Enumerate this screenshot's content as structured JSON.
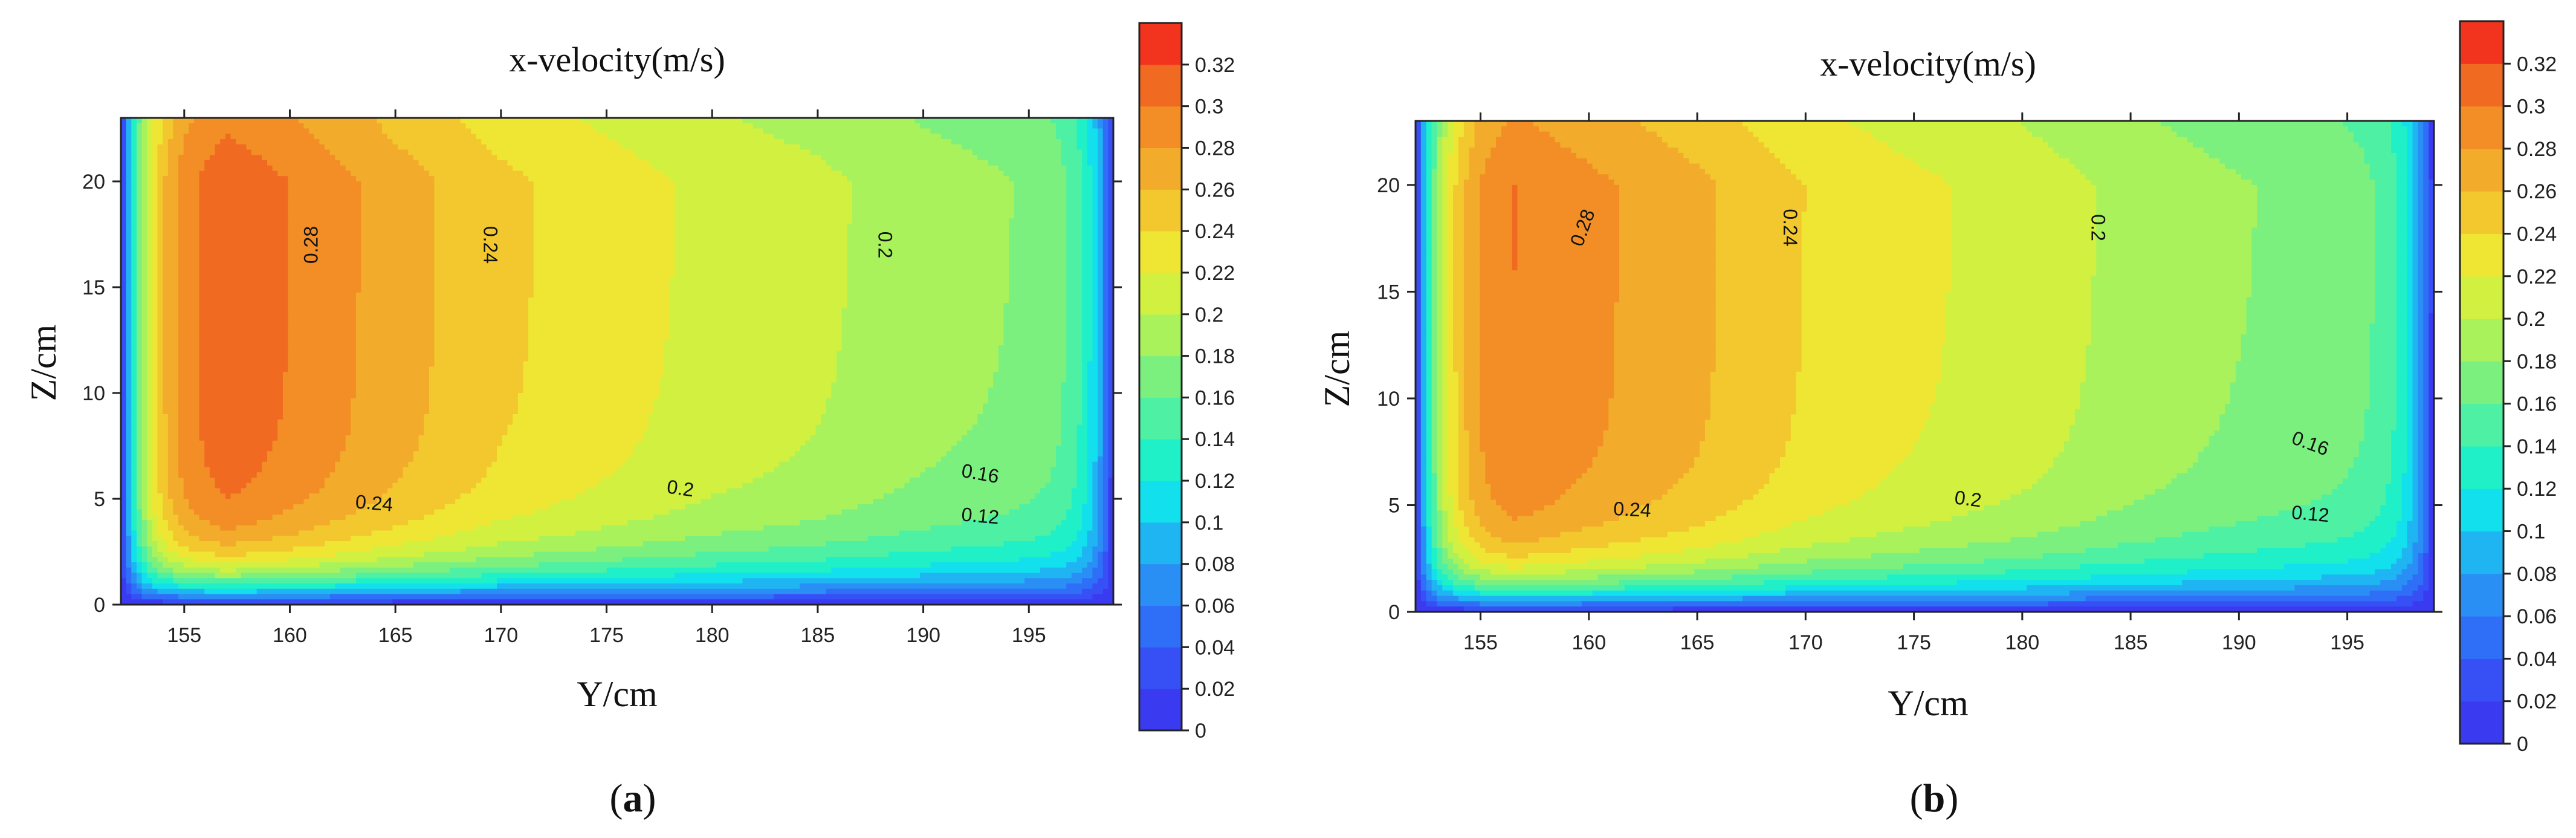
{
  "panel_labels": [
    "(a)",
    "(b)"
  ],
  "chart_data": [
    {
      "type": "contour",
      "panel": "(a)",
      "title": "x-velocity(m/s)",
      "xlabel": "Y/cm",
      "ylabel": "Z/cm",
      "x_ticks": [
        "155",
        "160",
        "165",
        "170",
        "175",
        "180",
        "185",
        "190",
        "195"
      ],
      "x_tick_values": [
        155,
        160,
        165,
        170,
        175,
        180,
        185,
        190,
        195
      ],
      "y_ticks": [
        "0",
        "5",
        "10",
        "15",
        "20"
      ],
      "y_tick_values": [
        0,
        5,
        10,
        15,
        20
      ],
      "xlim": [
        152,
        199
      ],
      "ylim": [
        0,
        23
      ],
      "colorbar_ticks": [
        "0",
        "0.02",
        "0.04",
        "0.06",
        "0.08",
        "0.1",
        "0.12",
        "0.14",
        "0.16",
        "0.18",
        "0.2",
        "0.22",
        "0.24",
        "0.26",
        "0.28",
        "0.3",
        "0.32"
      ],
      "colorbar_values": [
        0,
        0.02,
        0.04,
        0.06,
        0.08,
        0.1,
        0.12,
        0.14,
        0.16,
        0.18,
        0.2,
        0.22,
        0.24,
        0.26,
        0.28,
        0.3,
        0.32
      ],
      "colorbar_max": 0.34,
      "colormap": [
        "#3a3af0",
        "#3750f5",
        "#2f6ff8",
        "#2a8ff5",
        "#1fb4f2",
        "#12e0ec",
        "#1ff0c8",
        "#4ef0a4",
        "#7bf07f",
        "#a9f25b",
        "#d2f040",
        "#efe634",
        "#f2c82e",
        "#f2ab2a",
        "#f28e25",
        "#f06a22",
        "#f2341f"
      ],
      "contour_line_labels": [
        {
          "text": "0.28",
          "x": 161,
          "y": 17,
          "rot": -90
        },
        {
          "text": "0.24",
          "x": 169.5,
          "y": 17,
          "rot": 90
        },
        {
          "text": "0.2",
          "x": 188.2,
          "y": 17,
          "rot": 90
        },
        {
          "text": "0.24",
          "x": 164,
          "y": 4.8,
          "rot": 5
        },
        {
          "text": "0.2",
          "x": 178.5,
          "y": 5.5,
          "rot": 8
        },
        {
          "text": "0.16",
          "x": 192.7,
          "y": 6.2,
          "rot": 10
        },
        {
          "text": "0.12",
          "x": 192.7,
          "y": 4.2,
          "rot": 5
        }
      ]
    },
    {
      "type": "contour",
      "panel": "(b)",
      "title": "x-velocity(m/s)",
      "xlabel": "Y/cm",
      "ylabel": "Z/cm",
      "x_ticks": [
        "155",
        "160",
        "165",
        "170",
        "175",
        "180",
        "185",
        "190",
        "195"
      ],
      "x_tick_values": [
        155,
        160,
        165,
        170,
        175,
        180,
        185,
        190,
        195
      ],
      "y_ticks": [
        "0",
        "5",
        "10",
        "15",
        "20"
      ],
      "y_tick_values": [
        0,
        5,
        10,
        15,
        20
      ],
      "xlim": [
        152,
        199
      ],
      "ylim": [
        0,
        23
      ],
      "colorbar_ticks": [
        "0",
        "0.02",
        "0.04",
        "0.06",
        "0.08",
        "0.1",
        "0.12",
        "0.14",
        "0.16",
        "0.18",
        "0.2",
        "0.22",
        "0.24",
        "0.26",
        "0.28",
        "0.3",
        "0.32"
      ],
      "colorbar_values": [
        0,
        0.02,
        0.04,
        0.06,
        0.08,
        0.1,
        0.12,
        0.14,
        0.16,
        0.18,
        0.2,
        0.22,
        0.24,
        0.26,
        0.28,
        0.3,
        0.32
      ],
      "colorbar_max": 0.34,
      "colormap": [
        "#3a3af0",
        "#3750f5",
        "#2f6ff8",
        "#2a8ff5",
        "#1fb4f2",
        "#12e0ec",
        "#1ff0c8",
        "#4ef0a4",
        "#7bf07f",
        "#a9f25b",
        "#d2f040",
        "#efe634",
        "#f2c82e",
        "#f2ab2a",
        "#f28e25",
        "#f06a22",
        "#f2341f"
      ],
      "contour_line_labels": [
        {
          "text": "0.28",
          "x": 159.7,
          "y": 18,
          "rot": -70
        },
        {
          "text": "0.24",
          "x": 169.3,
          "y": 18,
          "rot": 90
        },
        {
          "text": "0.2",
          "x": 183.5,
          "y": 18,
          "rot": 90
        },
        {
          "text": "0.24",
          "x": 162,
          "y": 4.8,
          "rot": 3
        },
        {
          "text": "0.2",
          "x": 177.5,
          "y": 5.3,
          "rot": 7
        },
        {
          "text": "0.16",
          "x": 193.3,
          "y": 7.9,
          "rot": 20
        },
        {
          "text": "0.12",
          "x": 193.3,
          "y": 4.6,
          "rot": 5
        }
      ]
    }
  ]
}
